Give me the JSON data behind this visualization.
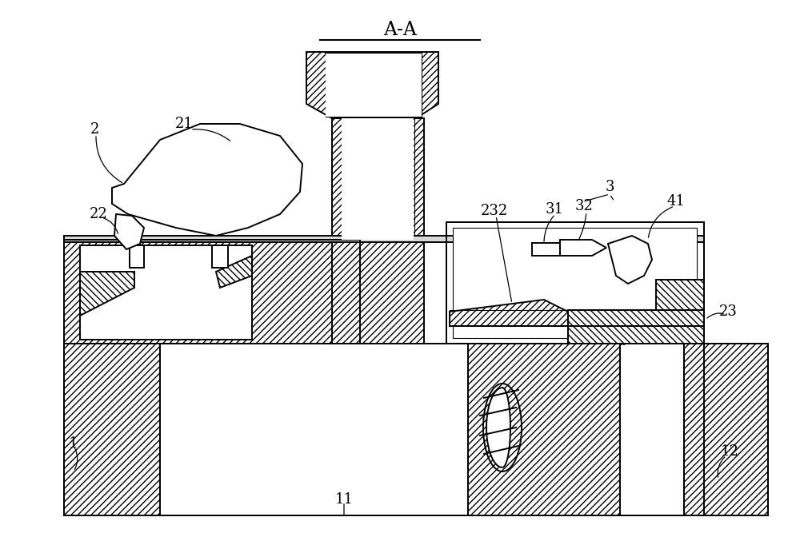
{
  "bg_color": "#ffffff",
  "line_color": "#000000",
  "title": "A-A",
  "lw_main": 1.4,
  "lw_thin": 0.8,
  "label_fontsize": 13,
  "title_fontsize": 17,
  "hatch_density": "////",
  "hatch_density2": "\\\\\\\\"
}
